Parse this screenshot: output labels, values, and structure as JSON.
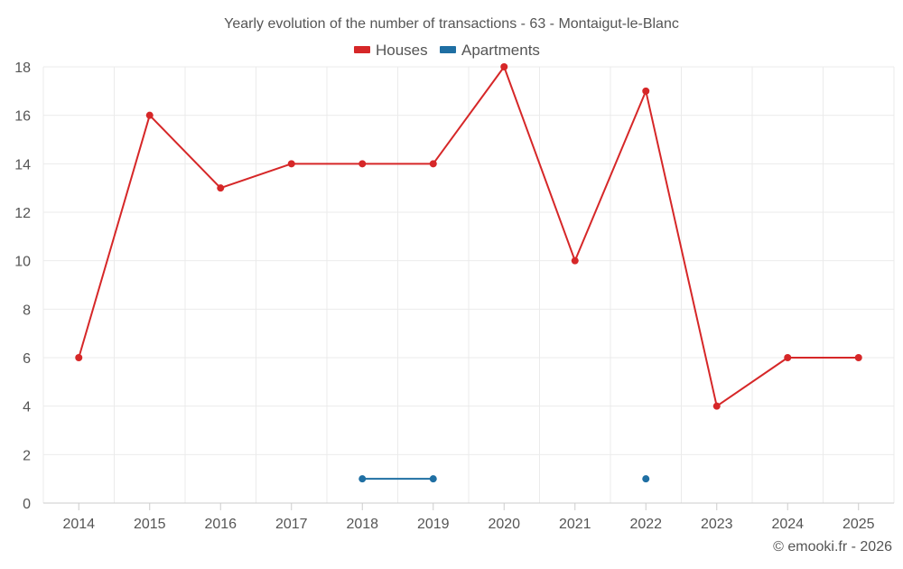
{
  "chart_data": {
    "type": "line",
    "title": "Yearly evolution of the number of transactions - 63 - Montaigut-le-Blanc",
    "xlabel": "",
    "ylabel": "",
    "categories": [
      "2014",
      "2015",
      "2016",
      "2017",
      "2018",
      "2019",
      "2020",
      "2021",
      "2022",
      "2023",
      "2024",
      "2025"
    ],
    "ylim": [
      0,
      18
    ],
    "yticks": [
      0,
      2,
      4,
      6,
      8,
      10,
      12,
      14,
      16,
      18
    ],
    "grid": true,
    "legend_position": "top-center",
    "series": [
      {
        "name": "Houses",
        "color": "#d62728",
        "values": [
          6,
          16,
          13,
          14,
          14,
          14,
          18,
          10,
          17,
          4,
          6,
          6
        ]
      },
      {
        "name": "Apartments",
        "color": "#1f6fa3",
        "values": [
          null,
          null,
          null,
          null,
          1,
          1,
          null,
          null,
          1,
          null,
          null,
          null
        ]
      }
    ]
  },
  "credit": "© emooki.fr - 2026"
}
